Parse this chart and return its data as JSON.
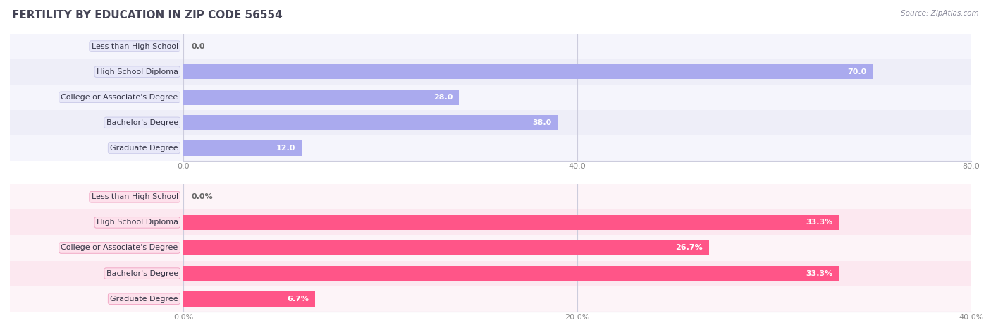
{
  "title": "FERTILITY BY EDUCATION IN ZIP CODE 56554",
  "source": "Source: ZipAtlas.com",
  "top_chart": {
    "categories": [
      "Less than High School",
      "High School Diploma",
      "College or Associate's Degree",
      "Bachelor's Degree",
      "Graduate Degree"
    ],
    "values": [
      0.0,
      70.0,
      28.0,
      38.0,
      12.0
    ],
    "bar_color": "#aaaaee",
    "value_labels": [
      "0.0",
      "70.0",
      "28.0",
      "38.0",
      "12.0"
    ],
    "xlim": [
      0,
      80
    ],
    "xticks": [
      0.0,
      40.0,
      80.0
    ],
    "xticklabels": [
      "0.0",
      "40.0",
      "80.0"
    ],
    "bg_color": "#eeeef8",
    "row_colors": [
      "#f5f5fc",
      "#eeeef8"
    ]
  },
  "bottom_chart": {
    "categories": [
      "Less than High School",
      "High School Diploma",
      "College or Associate's Degree",
      "Bachelor's Degree",
      "Graduate Degree"
    ],
    "values": [
      0.0,
      33.3,
      26.7,
      33.3,
      6.7
    ],
    "bar_color": "#ff5588",
    "value_labels": [
      "0.0%",
      "33.3%",
      "26.7%",
      "33.3%",
      "6.7%"
    ],
    "xlim": [
      0,
      40
    ],
    "xticks": [
      0.0,
      20.0,
      40.0
    ],
    "xticklabels": [
      "0.0%",
      "20.0%",
      "40.0%"
    ],
    "bg_color": "#fce8f0",
    "row_colors": [
      "#fdf4f8",
      "#fce8f0"
    ]
  },
  "label_bg_top": "#e8e8f8",
  "label_bg_bottom": "#fde0eb",
  "label_border_top": "#c8c8e8",
  "label_border_bottom": "#f0a0c0",
  "figure_bg": "#ffffff",
  "title_color": "#444455",
  "title_fontsize": 11,
  "bar_height": 0.6,
  "label_fontsize": 8,
  "value_fontsize": 8,
  "tick_fontsize": 8,
  "grid_color": "#ccccdd",
  "source_color": "#888899",
  "source_fontsize": 7.5
}
